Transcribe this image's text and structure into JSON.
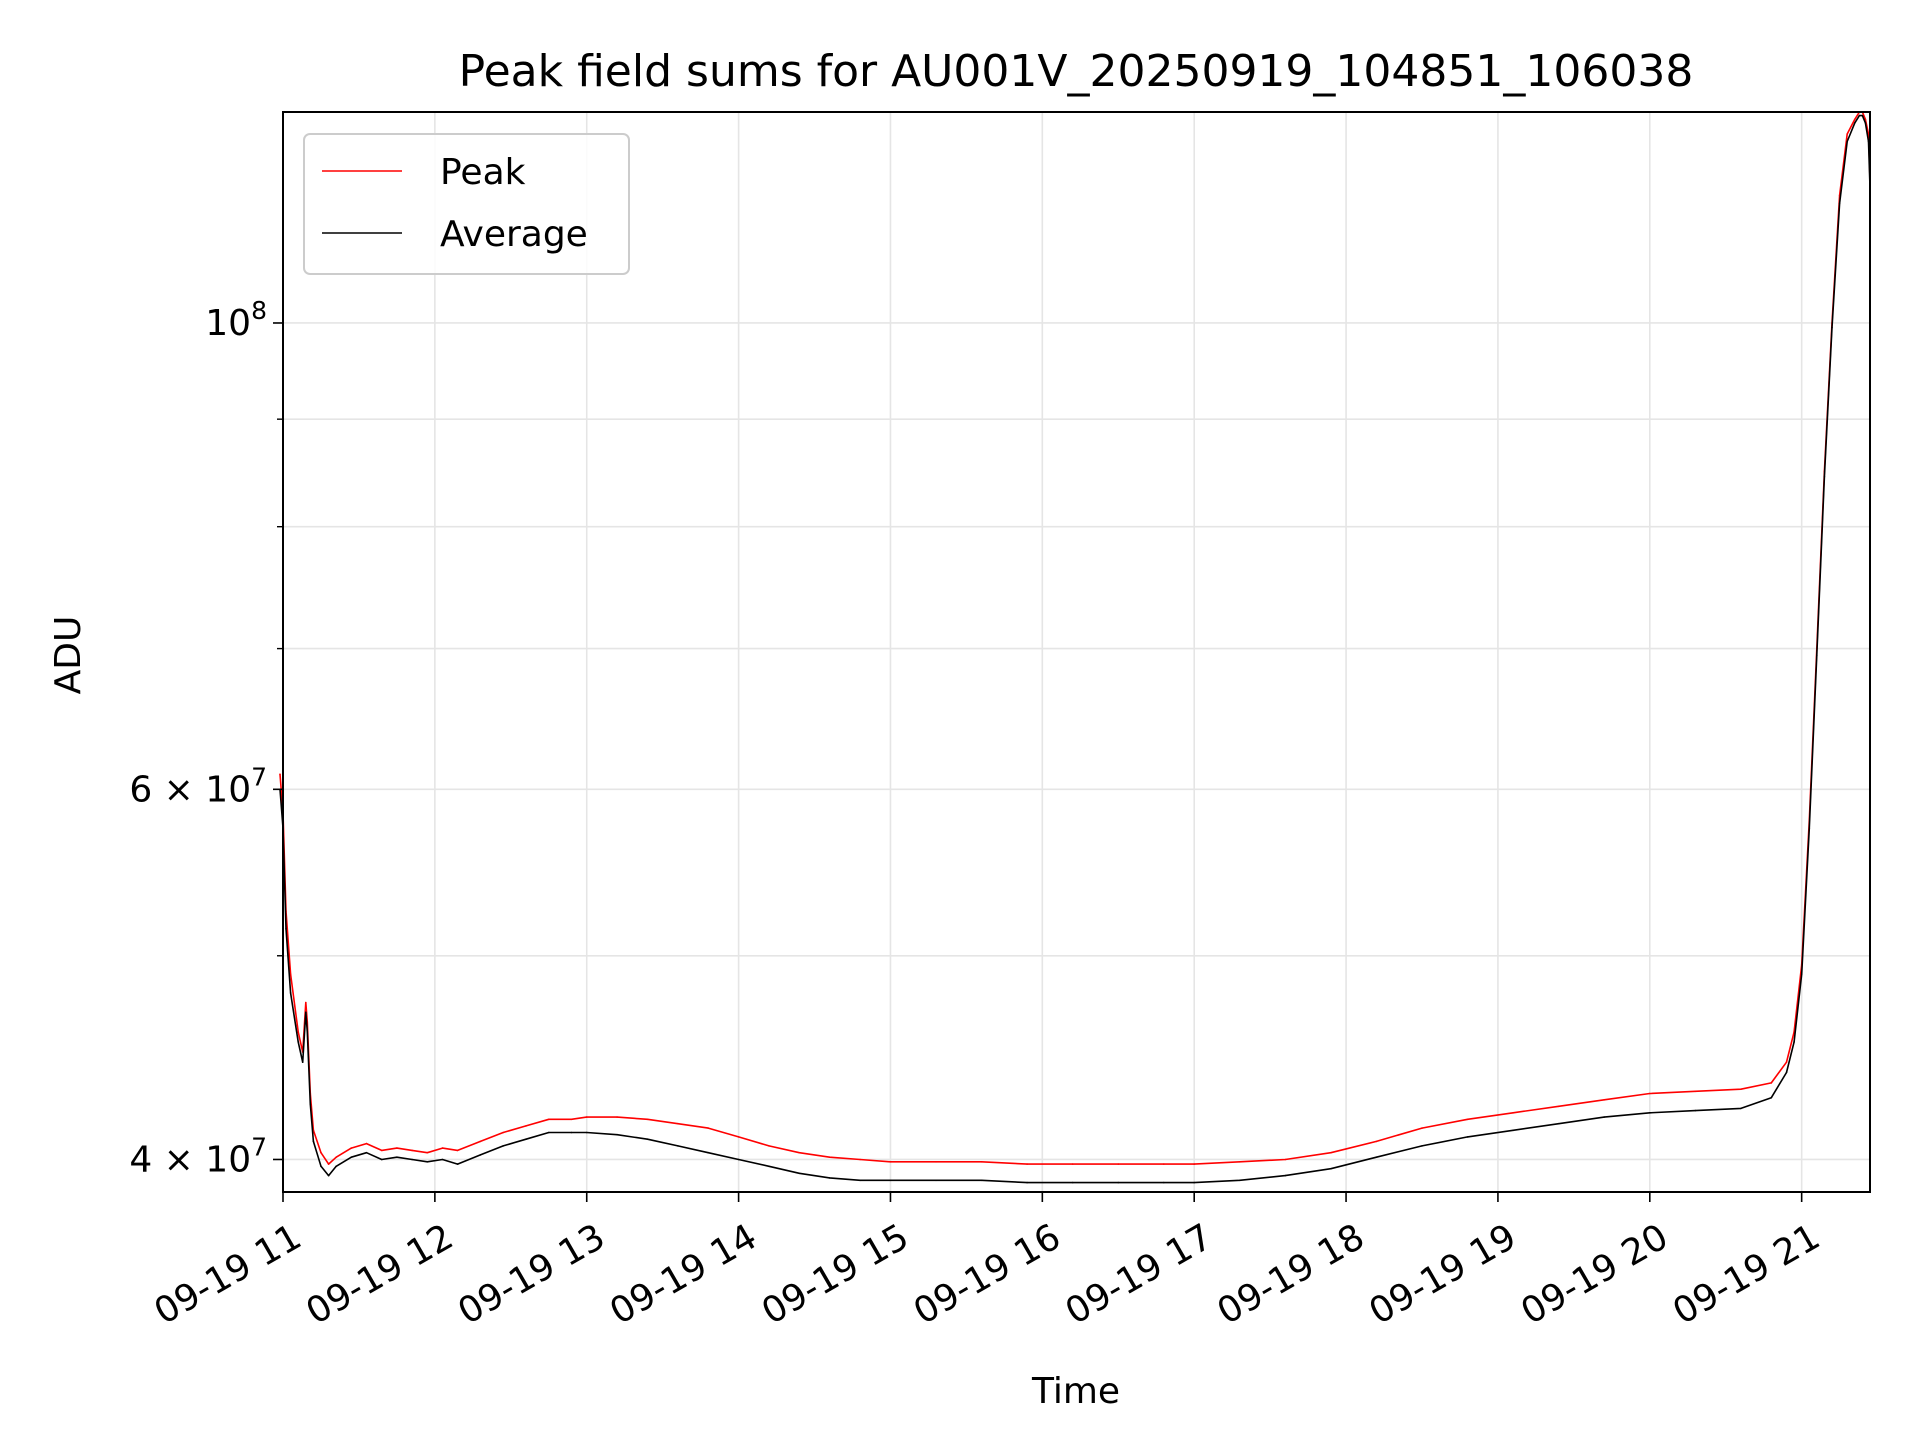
{
  "chart_data": {
    "type": "line",
    "title": "Peak field sums for AU001V_20250919_104851_106038",
    "xlabel": "Time",
    "ylabel": "ADU",
    "x_tick_labels": [
      "09-19 11",
      "09-19 12",
      "09-19 13",
      "09-19 14",
      "09-19 15",
      "09-19 16",
      "09-19 17",
      "09-19 18",
      "09-19 19",
      "09-19 20",
      "09-19 21"
    ],
    "x_ticks_hours": [
      11,
      12,
      13,
      14,
      15,
      16,
      17,
      18,
      19,
      20,
      21
    ],
    "y_tick_labels": [
      {
        "value": 40000000,
        "base": "4 × 10",
        "exp": "7"
      },
      {
        "value": 60000000,
        "base": "6 × 10",
        "exp": "7"
      },
      {
        "value": 100000000,
        "base": "10",
        "exp": "8"
      }
    ],
    "y_minor_ticks": [
      50000000,
      70000000,
      80000000,
      90000000
    ],
    "y_scale": "log",
    "xlim_hours": [
      11.0,
      21.45
    ],
    "ylim": [
      38600000,
      126000000
    ],
    "grid": true,
    "legend_position": "upper left",
    "series": [
      {
        "name": "Peak",
        "color": "#ff0000",
        "x_hours": [
          10.98,
          11.0,
          11.02,
          11.05,
          11.1,
          11.13,
          11.15,
          11.16,
          11.18,
          11.2,
          11.25,
          11.3,
          11.35,
          11.45,
          11.55,
          11.65,
          11.75,
          11.85,
          11.95,
          12.05,
          12.15,
          12.3,
          12.45,
          12.6,
          12.75,
          12.9,
          13.0,
          13.2,
          13.4,
          13.6,
          13.8,
          14.0,
          14.2,
          14.4,
          14.6,
          14.8,
          15.0,
          15.3,
          15.6,
          15.9,
          16.2,
          16.5,
          16.8,
          17.0,
          17.3,
          17.6,
          17.9,
          18.2,
          18.5,
          18.8,
          19.1,
          19.4,
          19.7,
          20.0,
          20.3,
          20.6,
          20.8,
          20.9,
          20.95,
          21.0,
          21.05,
          21.1,
          21.15,
          21.2,
          21.25,
          21.3,
          21.35,
          21.38,
          21.4,
          21.42,
          21.44,
          21.45
        ],
        "values": [
          61000000,
          58500000,
          52500000,
          49000000,
          46000000,
          45000000,
          47500000,
          46500000,
          43000000,
          41300000,
          40300000,
          39800000,
          40100000,
          40500000,
          40700000,
          40400000,
          40500000,
          40400000,
          40300000,
          40500000,
          40400000,
          40800000,
          41200000,
          41500000,
          41800000,
          41800000,
          41900000,
          41900000,
          41800000,
          41600000,
          41400000,
          41000000,
          40600000,
          40300000,
          40100000,
          40000000,
          39900000,
          39900000,
          39900000,
          39800000,
          39800000,
          39800000,
          39800000,
          39800000,
          39900000,
          40000000,
          40300000,
          40800000,
          41400000,
          41800000,
          42100000,
          42400000,
          42700000,
          43000000,
          43100000,
          43200000,
          43500000,
          44500000,
          46000000,
          49500000,
          58000000,
          70000000,
          85000000,
          100000000,
          115000000,
          123000000,
          125000000,
          126000000,
          126000000,
          125000000,
          123000000,
          117000000
        ]
      },
      {
        "name": "Average",
        "color": "#000000",
        "x_hours": [
          10.98,
          11.0,
          11.02,
          11.05,
          11.1,
          11.13,
          11.15,
          11.16,
          11.18,
          11.2,
          11.25,
          11.3,
          11.35,
          11.45,
          11.55,
          11.65,
          11.75,
          11.85,
          11.95,
          12.05,
          12.15,
          12.3,
          12.45,
          12.6,
          12.75,
          12.9,
          13.0,
          13.2,
          13.4,
          13.6,
          13.8,
          14.0,
          14.2,
          14.4,
          14.6,
          14.8,
          15.0,
          15.3,
          15.6,
          15.9,
          16.2,
          16.5,
          16.8,
          17.0,
          17.3,
          17.6,
          17.9,
          18.2,
          18.5,
          18.8,
          19.1,
          19.4,
          19.7,
          20.0,
          20.3,
          20.6,
          20.8,
          20.9,
          20.95,
          21.0,
          21.05,
          21.1,
          21.15,
          21.2,
          21.25,
          21.3,
          21.35,
          21.38,
          21.4,
          21.42,
          21.44,
          21.45
        ],
        "values": [
          60000000,
          57500000,
          51500000,
          48000000,
          45500000,
          44500000,
          47000000,
          46000000,
          42500000,
          40800000,
          39700000,
          39300000,
          39700000,
          40100000,
          40300000,
          40000000,
          40100000,
          40000000,
          39900000,
          40000000,
          39800000,
          40200000,
          40600000,
          40900000,
          41200000,
          41200000,
          41200000,
          41100000,
          40900000,
          40600000,
          40300000,
          40000000,
          39700000,
          39400000,
          39200000,
          39100000,
          39100000,
          39100000,
          39100000,
          39000000,
          39000000,
          39000000,
          39000000,
          39000000,
          39100000,
          39300000,
          39600000,
          40100000,
          40600000,
          41000000,
          41300000,
          41600000,
          41900000,
          42100000,
          42200000,
          42300000,
          42800000,
          44000000,
          45500000,
          49000000,
          57500000,
          69500000,
          84500000,
          99500000,
          114000000,
          122000000,
          124500000,
          125500000,
          125500000,
          124500000,
          122000000,
          116000000
        ]
      }
    ]
  }
}
